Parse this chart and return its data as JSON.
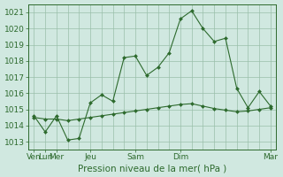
{
  "bg_color": "#d0e8e0",
  "grid_color": "#9abfaa",
  "line_color": "#2d6a2d",
  "marker_color": "#2d6a2d",
  "xlabel": "Pression niveau de la mer( hPa )",
  "xlabel_fontsize": 7.5,
  "tick_fontsize": 6.5,
  "ylim": [
    1012.5,
    1021.5
  ],
  "yticks": [
    1013,
    1014,
    1015,
    1016,
    1017,
    1018,
    1019,
    1020,
    1021
  ],
  "series1_x": [
    0,
    1,
    2,
    3,
    4,
    5,
    6,
    7,
    8,
    9,
    10,
    11,
    12,
    13,
    14,
    15,
    16,
    17,
    18,
    19,
    20,
    21
  ],
  "series1_y": [
    1014.6,
    1013.6,
    1014.6,
    1013.1,
    1013.2,
    1015.4,
    1015.9,
    1015.5,
    1018.2,
    1018.3,
    1017.1,
    1017.6,
    1018.5,
    1020.6,
    1021.1,
    1020.0,
    1019.2,
    1019.4,
    1016.3,
    1015.1,
    1016.1,
    1015.2
  ],
  "series2_x": [
    0,
    1,
    2,
    3,
    4,
    5,
    6,
    7,
    8,
    9,
    10,
    11,
    12,
    13,
    14,
    15,
    16,
    17,
    18,
    19,
    20,
    21
  ],
  "series2_y": [
    1014.5,
    1014.4,
    1014.4,
    1014.3,
    1014.4,
    1014.5,
    1014.6,
    1014.7,
    1014.8,
    1014.9,
    1015.0,
    1015.1,
    1015.2,
    1015.3,
    1015.35,
    1015.2,
    1015.05,
    1014.95,
    1014.85,
    1014.9,
    1015.0,
    1015.1
  ],
  "n_points": 22,
  "x_tick_positions": [
    0,
    1,
    2,
    5,
    9,
    13,
    21
  ],
  "x_tick_labels": [
    "Ven",
    "Lun",
    "Mer",
    "Jeu",
    "Sam",
    "Dim",
    "Mar"
  ]
}
